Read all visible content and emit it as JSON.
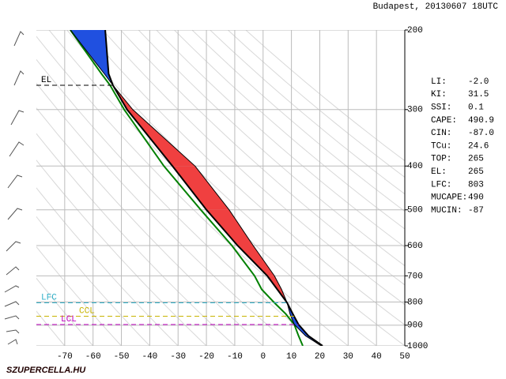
{
  "title": "Budapest, 20130607 18UTC",
  "chart_data": {
    "type": "skewt",
    "xlim": [
      -80,
      50
    ],
    "xticks": [
      -70,
      -60,
      -50,
      -40,
      -30,
      -20,
      -10,
      0,
      10,
      20,
      30,
      40,
      50
    ],
    "ylim": [
      1000,
      200
    ],
    "yticks": [
      1000,
      900,
      800,
      700,
      600,
      500,
      400,
      300,
      200
    ],
    "log_y": true,
    "grid": true,
    "pressure": [
      1000,
      950,
      897,
      850,
      803,
      750,
      700,
      600,
      500,
      400,
      300,
      265,
      250,
      200
    ],
    "series": [
      {
        "color": "#000000",
        "values": [
          21,
          16,
          12.5,
          10.5,
          8.5,
          5,
          1.5,
          -9,
          -20,
          -32,
          -48,
          -53,
          -54.5,
          -55.7
        ]
      },
      {
        "color": "#008000",
        "values": [
          14,
          12.5,
          11,
          8,
          4,
          -0.5,
          -3,
          -11,
          -22,
          -35,
          -49,
          -54,
          -57,
          -68
        ]
      },
      {
        "color": "#000000",
        "values": [
          20.5,
          15,
          11,
          9.5,
          8.5,
          6.5,
          4,
          -3.5,
          -12,
          -24,
          -46,
          -53,
          -56,
          -68
        ]
      }
    ],
    "levels": [
      {
        "label": "EL",
        "pressure": 265,
        "color": "#000000"
      },
      {
        "label": "LFC",
        "pressure": 803,
        "color": "#30b0c8"
      },
      {
        "label": "CCL",
        "pressure": 860,
        "color": "#c8b400"
      },
      {
        "label": "LCL",
        "pressure": 897,
        "color": "#c000c0"
      }
    ]
  },
  "indices": [
    {
      "label": "LI:",
      "value": "-2.0"
    },
    {
      "label": "KI:",
      "value": "31.5"
    },
    {
      "label": "SSI:",
      "value": "0.1"
    },
    {
      "label": "CAPE:",
      "value": "490.9"
    },
    {
      "label": "CIN:",
      "value": "-87.0"
    },
    {
      "label": "TCu:",
      "value": "24.6"
    },
    {
      "label": "TOP:",
      "value": "265"
    },
    {
      "label": "EL:",
      "value": "265"
    },
    {
      "label": "LFC:",
      "value": "803"
    },
    {
      "label": "MUCAPE:",
      "value": "490"
    },
    {
      "label": "MUCIN:",
      "value": "-87"
    }
  ],
  "footer": "SZUPERCELLA.HU"
}
